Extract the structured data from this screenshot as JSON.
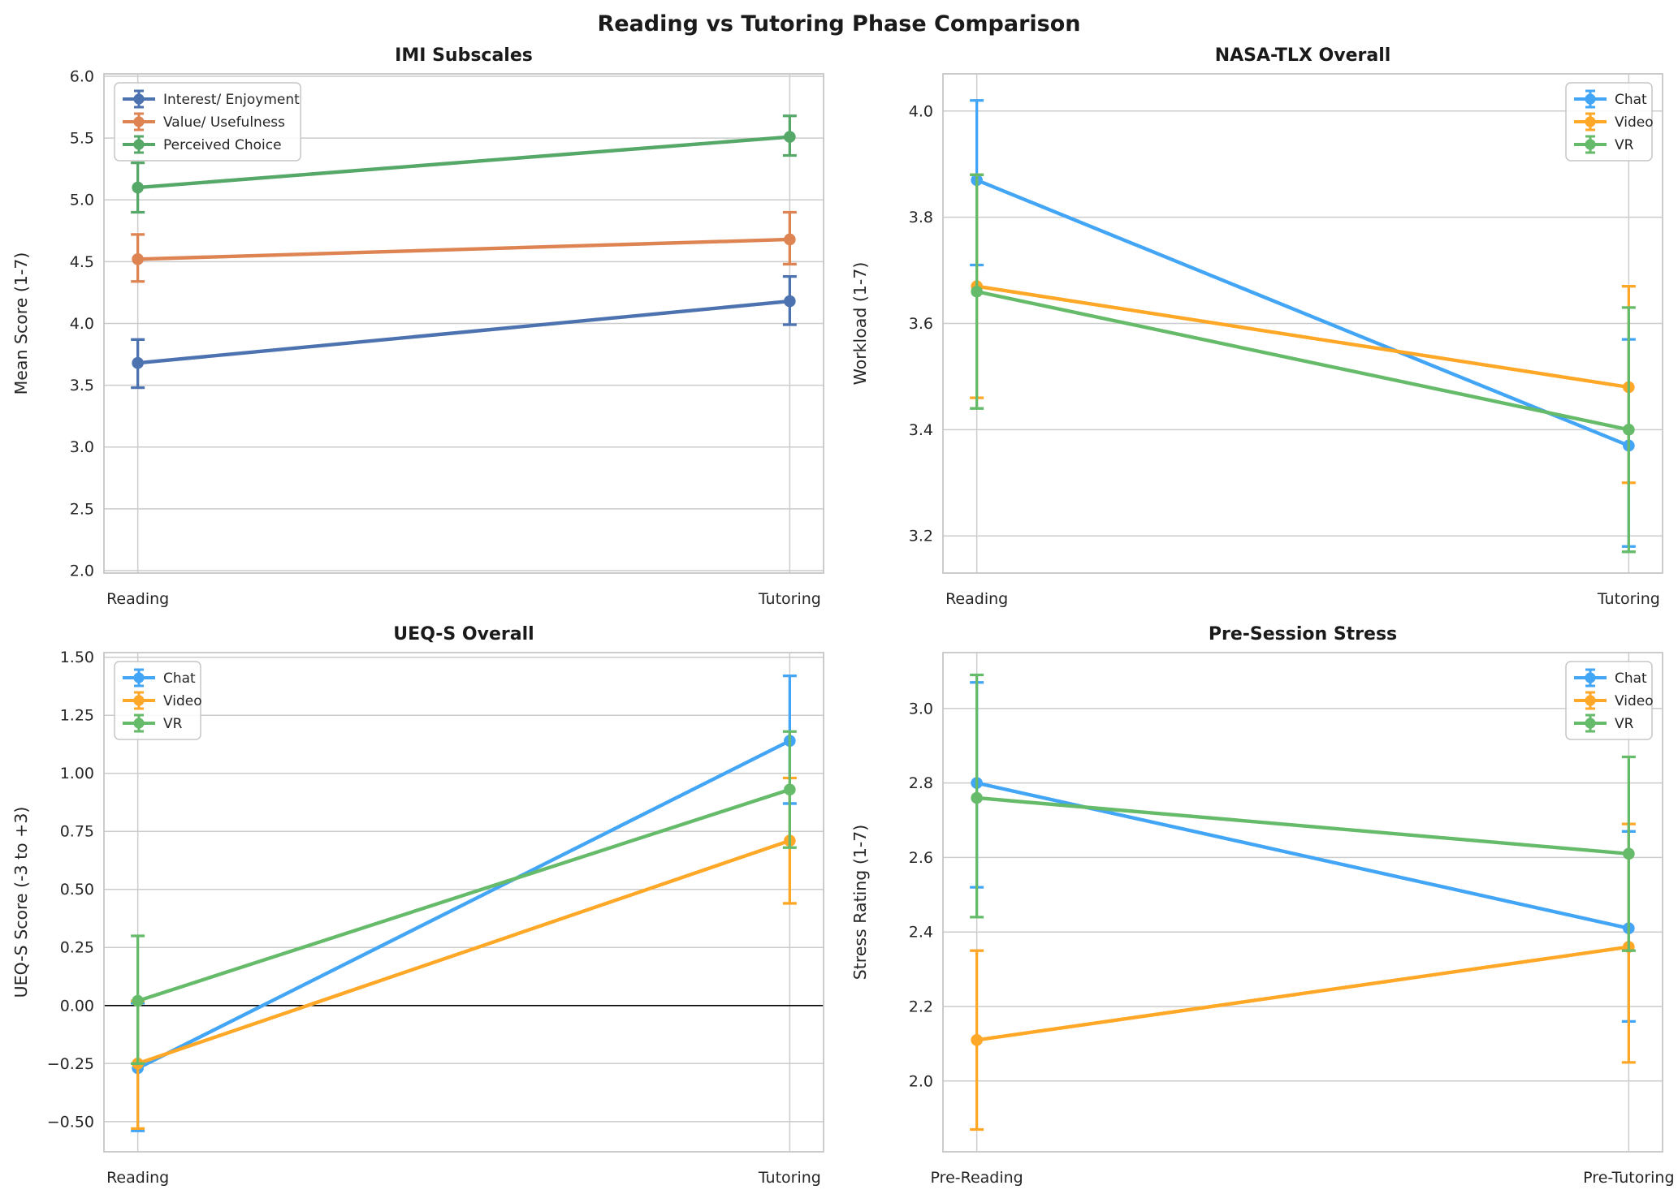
{
  "figure": {
    "title": "Reading vs Tutoring Phase Comparison",
    "background": "#ffffff"
  },
  "palette": {
    "grid": "#cccccc",
    "spine": "#c6c6c6",
    "text": "#262626",
    "zero_line": "#000000",
    "imi_blue": "#4C72B0",
    "imi_orange": "#DD8452",
    "imi_green": "#55A868",
    "chat_blue": "#42A5F5",
    "video_orange": "#FFA726",
    "vr_green": "#66BB6A"
  },
  "chart_data": [
    {
      "type": "line",
      "title": "IMI Subscales",
      "ylabel": "Mean Score (1-7)",
      "categories": [
        "Reading",
        "Tutoring"
      ],
      "yticks": [
        2.0,
        2.5,
        3.0,
        3.5,
        4.0,
        4.5,
        5.0,
        5.5,
        6.0
      ],
      "ytick_decimals": 1,
      "ylim": [
        1.98,
        6.02
      ],
      "grid": true,
      "zero_line": false,
      "legend_position": "top-left",
      "series": [
        {
          "name": "Interest/ Enjoyment",
          "color": "#4C72B0",
          "values": [
            3.68,
            4.18
          ],
          "err_low": [
            3.48,
            3.99
          ],
          "err_high": [
            3.87,
            4.38
          ]
        },
        {
          "name": "Value/ Usefulness",
          "color": "#DD8452",
          "values": [
            4.52,
            4.68
          ],
          "err_low": [
            4.34,
            4.48
          ],
          "err_high": [
            4.72,
            4.9
          ]
        },
        {
          "name": "Perceived Choice",
          "color": "#55A868",
          "values": [
            5.1,
            5.51
          ],
          "err_low": [
            4.9,
            5.36
          ],
          "err_high": [
            5.3,
            5.68
          ]
        }
      ]
    },
    {
      "type": "line",
      "title": "NASA-TLX Overall",
      "ylabel": "Workload (1-7)",
      "categories": [
        "Reading",
        "Tutoring"
      ],
      "yticks": [
        3.2,
        3.4,
        3.6,
        3.8,
        4.0
      ],
      "ytick_decimals": 1,
      "ylim": [
        3.13,
        4.07
      ],
      "grid": true,
      "zero_line": false,
      "legend_position": "top-right",
      "series": [
        {
          "name": "Chat",
          "color": "#42A5F5",
          "values": [
            3.87,
            3.37
          ],
          "err_low": [
            3.71,
            3.18
          ],
          "err_high": [
            4.02,
            3.57
          ]
        },
        {
          "name": "Video",
          "color": "#FFA726",
          "values": [
            3.67,
            3.48
          ],
          "err_low": [
            3.46,
            3.3
          ],
          "err_high": [
            3.88,
            3.67
          ]
        },
        {
          "name": "VR",
          "color": "#66BB6A",
          "values": [
            3.66,
            3.4
          ],
          "err_low": [
            3.44,
            3.17
          ],
          "err_high": [
            3.88,
            3.63
          ]
        }
      ]
    },
    {
      "type": "line",
      "title": "UEQ-S Overall",
      "ylabel": "UEQ-S Score (-3 to +3)",
      "categories": [
        "Reading",
        "Tutoring"
      ],
      "yticks": [
        -0.5,
        -0.25,
        0.0,
        0.25,
        0.5,
        0.75,
        1.0,
        1.25,
        1.5
      ],
      "ytick_decimals": 2,
      "ylim": [
        -0.63,
        1.52
      ],
      "grid": true,
      "zero_line": true,
      "legend_position": "top-left",
      "series": [
        {
          "name": "Chat",
          "color": "#42A5F5",
          "values": [
            -0.27,
            1.14
          ],
          "err_low": [
            -0.54,
            0.87
          ],
          "err_high": [
            0.01,
            1.42
          ]
        },
        {
          "name": "Video",
          "color": "#FFA726",
          "values": [
            -0.25,
            0.71
          ],
          "err_low": [
            -0.53,
            0.44
          ],
          "err_high": [
            0.02,
            0.98
          ]
        },
        {
          "name": "VR",
          "color": "#66BB6A",
          "values": [
            0.02,
            0.93
          ],
          "err_low": [
            -0.25,
            0.68
          ],
          "err_high": [
            0.3,
            1.18
          ]
        }
      ]
    },
    {
      "type": "line",
      "title": "Pre-Session Stress",
      "ylabel": "Stress Rating (1-7)",
      "categories": [
        "Pre-Reading",
        "Pre-Tutoring"
      ],
      "yticks": [
        2.0,
        2.2,
        2.4,
        2.6,
        2.8,
        3.0
      ],
      "ytick_decimals": 1,
      "ylim": [
        1.81,
        3.15
      ],
      "grid": true,
      "zero_line": false,
      "legend_position": "top-right",
      "series": [
        {
          "name": "Chat",
          "color": "#42A5F5",
          "values": [
            2.8,
            2.41
          ],
          "err_low": [
            2.52,
            2.16
          ],
          "err_high": [
            3.07,
            2.67
          ]
        },
        {
          "name": "Video",
          "color": "#FFA726",
          "values": [
            2.11,
            2.36
          ],
          "err_low": [
            1.87,
            2.05
          ],
          "err_high": [
            2.35,
            2.69
          ]
        },
        {
          "name": "VR",
          "color": "#66BB6A",
          "values": [
            2.76,
            2.61
          ],
          "err_low": [
            2.44,
            2.35
          ],
          "err_high": [
            3.09,
            2.87
          ]
        }
      ]
    }
  ]
}
